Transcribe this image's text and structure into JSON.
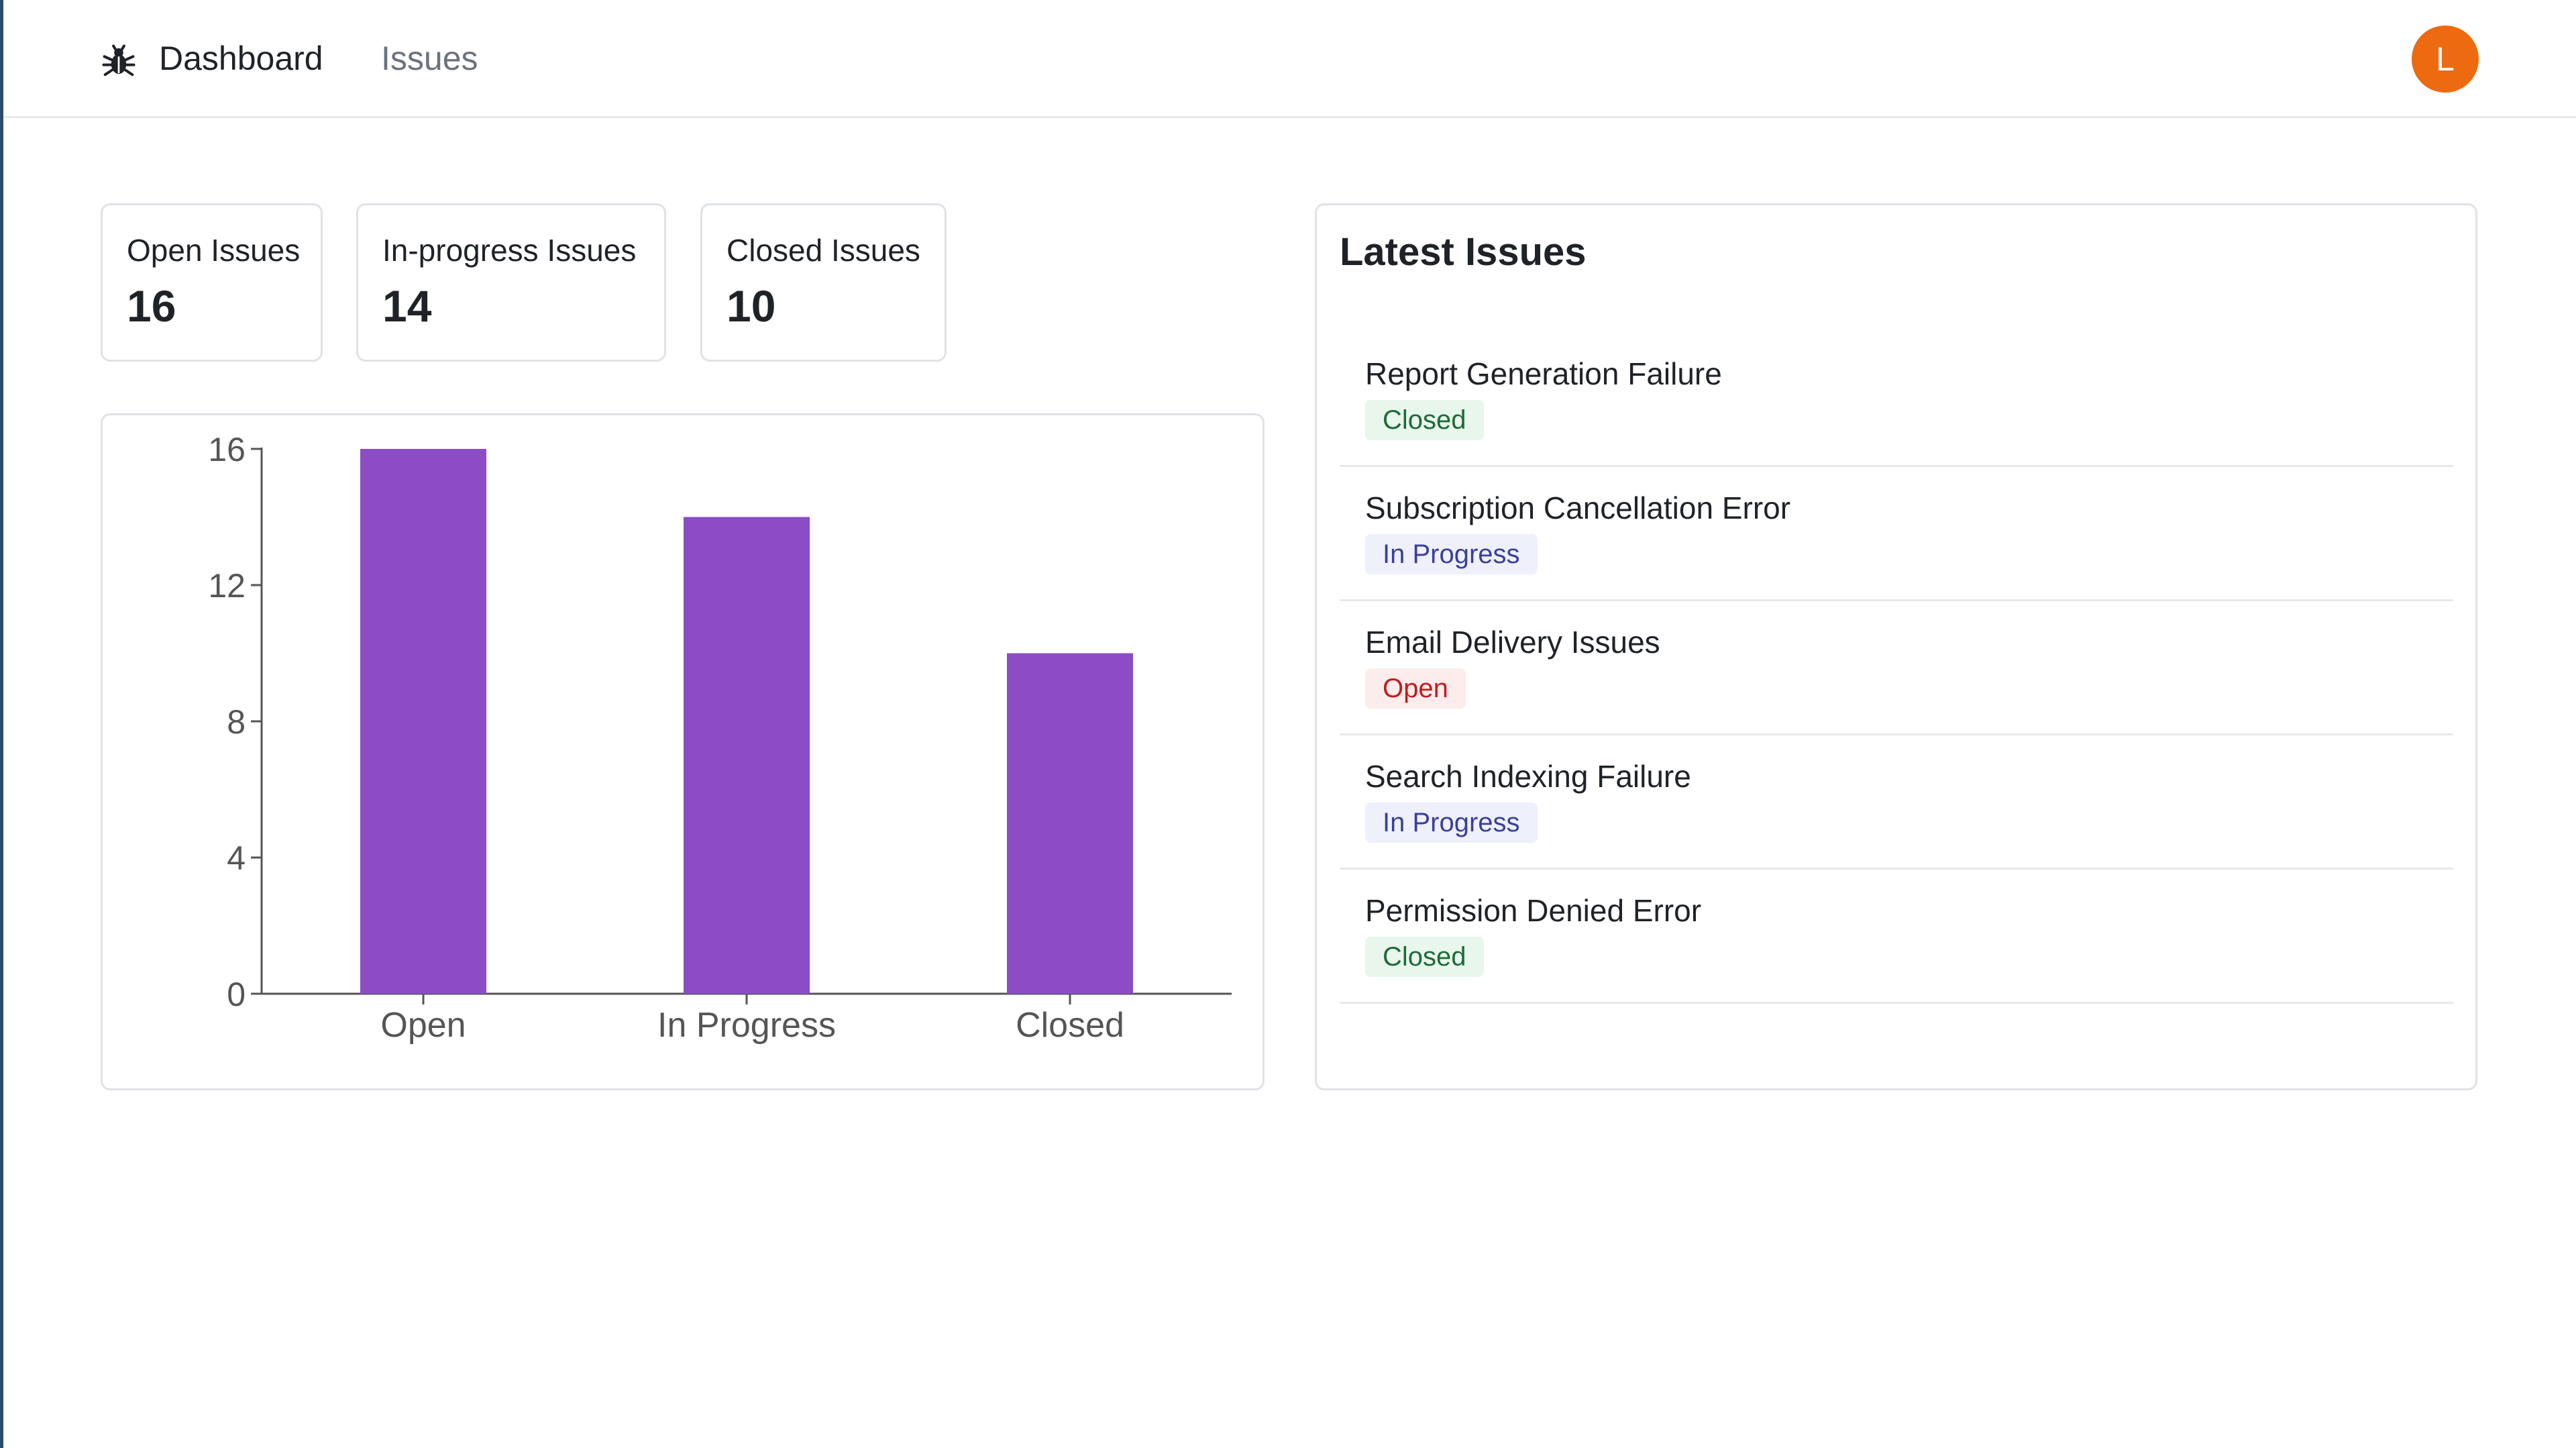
{
  "nav": {
    "logo_icon": "bug-icon",
    "links": [
      {
        "label": "Dashboard",
        "active": true
      },
      {
        "label": "Issues",
        "active": false
      }
    ],
    "avatar_initial": "L",
    "avatar_color": "#ee6a10"
  },
  "stats": [
    {
      "label": "Open Issues",
      "value": "16"
    },
    {
      "label": "In-progress Issues",
      "value": "14"
    },
    {
      "label": "Closed Issues",
      "value": "10"
    }
  ],
  "chart_data": {
    "type": "bar",
    "categories": [
      "Open",
      "In Progress",
      "Closed"
    ],
    "values": [
      16,
      14,
      10
    ],
    "yticks": [
      0,
      4,
      8,
      12,
      16
    ],
    "ylim": [
      0,
      16
    ],
    "bar_color": "#8b4cc4",
    "grid": false
  },
  "latest": {
    "title": "Latest Issues",
    "issues": [
      {
        "title": "Report Generation Failure",
        "status": "Closed",
        "kind": "closed"
      },
      {
        "title": "Subscription Cancellation Error",
        "status": "In Progress",
        "kind": "progress"
      },
      {
        "title": "Email Delivery Issues",
        "status": "Open",
        "kind": "open"
      },
      {
        "title": "Search Indexing Failure",
        "status": "In Progress",
        "kind": "progress"
      },
      {
        "title": "Permission Denied Error",
        "status": "Closed",
        "kind": "closed"
      }
    ]
  }
}
